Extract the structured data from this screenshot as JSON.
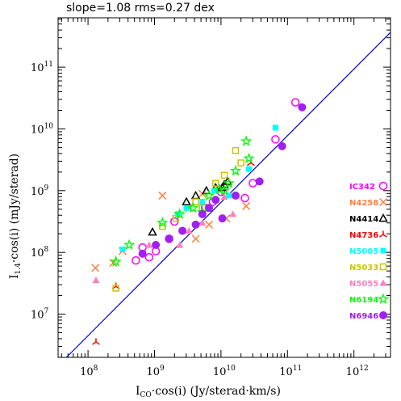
{
  "chart_data": {
    "type": "scatter",
    "title": "slope=1.08 rms=0.27 dex",
    "xlabel_main": "I",
    "xlabel_sub": "CO",
    "xlabel_rest": "·cos(i) (Jy/sterad·km/s)",
    "ylabel_main": "I",
    "ylabel_sub": "1.4",
    "ylabel_rest": "·cos(i) (mJy/sterad)",
    "x_log": true,
    "y_log": true,
    "xlim_log": [
      7.55,
      12.55
    ],
    "ylim_log": [
      6.3,
      11.8
    ],
    "xtick_base": "10",
    "xticks": [
      {
        "exp": 8,
        "label": "8"
      },
      {
        "exp": 9,
        "label": "9"
      },
      {
        "exp": 10,
        "label": "10"
      },
      {
        "exp": 11,
        "label": "11"
      },
      {
        "exp": 12,
        "label": "12"
      }
    ],
    "ytick_base": "10",
    "yticks": [
      {
        "exp": 7,
        "label": "7"
      },
      {
        "exp": 8,
        "label": "8"
      },
      {
        "exp": 9,
        "label": "9"
      },
      {
        "exp": 10,
        "label": "10"
      },
      {
        "exp": 11,
        "label": "11"
      }
    ],
    "fit_line": {
      "slope": 1.08,
      "intercept": -1.99,
      "color": "#0000cc"
    },
    "series": [
      {
        "name": "IC342",
        "color": "#ff00ff",
        "marker": "circle-open",
        "points": [
          [
            11.12,
            10.43
          ],
          [
            10.82,
            9.83
          ],
          [
            10.48,
            9.12
          ],
          [
            10.36,
            8.88
          ],
          [
            10.0,
            8.98
          ],
          [
            9.88,
            8.82
          ],
          [
            9.76,
            8.72
          ],
          [
            9.22,
            8.22
          ],
          [
            9.02,
            8.02
          ],
          [
            8.92,
            7.92
          ],
          [
            8.72,
            7.87
          ],
          [
            8.82,
            8.08
          ],
          [
            9.3,
            8.5
          ]
        ]
      },
      {
        "name": "N4258",
        "color": "#ff8040",
        "marker": "x",
        "points": [
          [
            8.11,
            7.75
          ],
          [
            8.38,
            7.83
          ],
          [
            9.62,
            8.22
          ],
          [
            10.08,
            8.55
          ],
          [
            10.38,
            8.75
          ],
          [
            9.82,
            8.45
          ],
          [
            9.52,
            8.72
          ],
          [
            8.52,
            8.02
          ],
          [
            9.12,
            8.92
          ],
          [
            9.72,
            8.95
          ]
        ]
      },
      {
        "name": "N4414",
        "color": "#000000",
        "marker": "triangle-open",
        "points": [
          [
            8.97,
            8.33
          ],
          [
            9.48,
            8.82
          ],
          [
            9.62,
            8.92
          ],
          [
            9.78,
            9.0
          ],
          [
            9.92,
            9.05
          ],
          [
            10.05,
            9.1
          ],
          [
            10.1,
            9.15
          ],
          [
            10.02,
            9.05
          ]
        ]
      },
      {
        "name": "N4736",
        "color": "#ff0000",
        "marker": "tri",
        "points": [
          [
            8.12,
            6.55
          ],
          [
            8.42,
            7.45
          ],
          [
            10.45,
            9.45
          ]
        ]
      },
      {
        "name": "N5005",
        "color": "#00ffff",
        "marker": "square",
        "points": [
          [
            10.82,
            10.02
          ],
          [
            9.35,
            8.62
          ],
          [
            8.52,
            8.05
          ],
          [
            9.48,
            8.72
          ],
          [
            9.72,
            8.82
          ],
          [
            9.9,
            9.0
          ],
          [
            10.42,
            9.35
          ],
          [
            10.12,
            8.92
          ]
        ]
      },
      {
        "name": "N5033",
        "color": "#c8c800",
        "marker": "square-open",
        "points": [
          [
            10.22,
            9.65
          ],
          [
            9.92,
            9.12
          ],
          [
            9.62,
            8.82
          ],
          [
            9.32,
            8.55
          ],
          [
            9.12,
            8.42
          ],
          [
            8.42,
            7.42
          ],
          [
            10.05,
            9.25
          ],
          [
            10.3,
            9.45
          ],
          [
            9.72,
            8.72
          ]
        ]
      },
      {
        "name": "N5055",
        "color": "#ff80c0",
        "marker": "triangle",
        "points": [
          [
            8.12,
            7.55
          ],
          [
            8.92,
            8.12
          ],
          [
            9.52,
            8.35
          ],
          [
            9.72,
            8.48
          ],
          [
            10.05,
            8.9
          ],
          [
            9.22,
            8.22
          ],
          [
            9.38,
            8.12
          ],
          [
            10.18,
            8.62
          ]
        ]
      },
      {
        "name": "N6194",
        "color": "#00ff00",
        "marker": "star-open",
        "points": [
          [
            10.38,
            9.8
          ],
          [
            10.42,
            9.52
          ],
          [
            10.22,
            9.32
          ],
          [
            10.12,
            9.12
          ],
          [
            9.98,
            9.02
          ],
          [
            9.82,
            8.92
          ],
          [
            9.58,
            8.72
          ],
          [
            9.38,
            8.62
          ],
          [
            9.12,
            8.48
          ],
          [
            8.62,
            8.12
          ],
          [
            9.72,
            8.65
          ],
          [
            10.05,
            9.0
          ],
          [
            8.42,
            7.85
          ]
        ]
      },
      {
        "name": "N6946",
        "color": "#a020f0",
        "marker": "circle",
        "points": [
          [
            11.22,
            10.35
          ],
          [
            10.92,
            9.72
          ],
          [
            10.58,
            9.15
          ],
          [
            10.22,
            8.92
          ],
          [
            9.92,
            8.85
          ],
          [
            9.72,
            8.62
          ],
          [
            9.62,
            8.45
          ],
          [
            9.42,
            8.35
          ],
          [
            9.22,
            8.22
          ],
          [
            9.02,
            8.12
          ],
          [
            8.82,
            7.98
          ],
          [
            9.82,
            8.72
          ],
          [
            10.02,
            8.55
          ]
        ]
      }
    ]
  }
}
